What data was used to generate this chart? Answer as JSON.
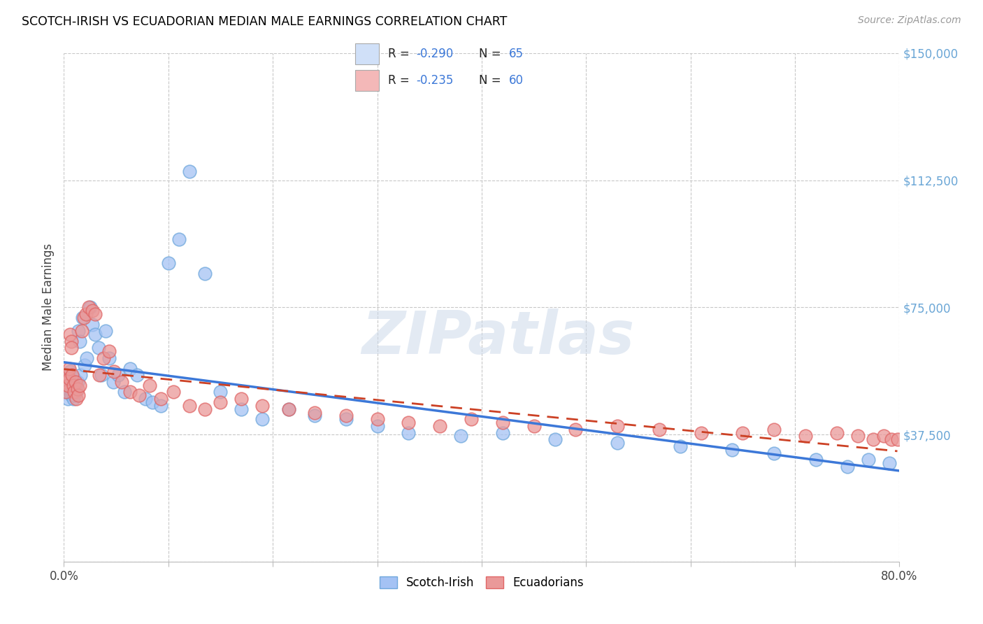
{
  "title": "SCOTCH-IRISH VS ECUADORIAN MEDIAN MALE EARNINGS CORRELATION CHART",
  "source": "Source: ZipAtlas.com",
  "ylabel": "Median Male Earnings",
  "xlim": [
    0.0,
    0.8
  ],
  "ylim": [
    0,
    150000
  ],
  "yticks": [
    0,
    37500,
    75000,
    112500,
    150000
  ],
  "ytick_labels": [
    "",
    "$37,500",
    "$75,000",
    "$112,500",
    "$150,000"
  ],
  "watermark": "ZIPatlas",
  "bg_color": "#ffffff",
  "grid_color": "#c8c8c8",
  "scotch_irish_color": "#a4c2f4",
  "ecuadorian_color": "#ea9999",
  "scotch_irish_dot_edge": "#6fa8dc",
  "ecuadorian_dot_edge": "#e06666",
  "scotch_irish_line_color": "#3c78d8",
  "ecuadorian_line_color": "#cc4125",
  "title_color": "#000000",
  "source_color": "#999999",
  "ytick_color": "#6aa6d6",
  "legend_box_color": "#d0e0f8",
  "legend_pink_color": "#f4b8b8",
  "legend_text_color": "#000000",
  "legend_val_color": "#3c78d8",
  "scotch_irish_x": [
    0.001,
    0.002,
    0.003,
    0.003,
    0.004,
    0.004,
    0.005,
    0.005,
    0.006,
    0.006,
    0.007,
    0.007,
    0.008,
    0.008,
    0.009,
    0.009,
    0.01,
    0.01,
    0.011,
    0.012,
    0.013,
    0.014,
    0.015,
    0.016,
    0.018,
    0.02,
    0.022,
    0.025,
    0.027,
    0.03,
    0.033,
    0.036,
    0.04,
    0.043,
    0.047,
    0.052,
    0.058,
    0.063,
    0.07,
    0.078,
    0.085,
    0.093,
    0.1,
    0.11,
    0.12,
    0.135,
    0.15,
    0.17,
    0.19,
    0.215,
    0.24,
    0.27,
    0.3,
    0.33,
    0.38,
    0.42,
    0.47,
    0.53,
    0.59,
    0.64,
    0.68,
    0.72,
    0.75,
    0.77,
    0.79
  ],
  "scotch_irish_y": [
    52000,
    54000,
    50000,
    55000,
    52000,
    48000,
    51000,
    53000,
    50000,
    56000,
    49000,
    53000,
    51000,
    50000,
    52000,
    48000,
    54000,
    49000,
    51000,
    50000,
    53000,
    68000,
    65000,
    55000,
    72000,
    58000,
    60000,
    75000,
    70000,
    67000,
    63000,
    55000,
    68000,
    60000,
    53000,
    55000,
    50000,
    57000,
    55000,
    48000,
    47000,
    46000,
    88000,
    95000,
    115000,
    85000,
    50000,
    45000,
    42000,
    45000,
    43000,
    42000,
    40000,
    38000,
    37000,
    38000,
    36000,
    35000,
    34000,
    33000,
    32000,
    30000,
    28000,
    30000,
    29000
  ],
  "ecuadorian_x": [
    0.001,
    0.002,
    0.003,
    0.004,
    0.005,
    0.005,
    0.006,
    0.007,
    0.007,
    0.008,
    0.009,
    0.01,
    0.011,
    0.012,
    0.013,
    0.014,
    0.015,
    0.017,
    0.019,
    0.021,
    0.024,
    0.027,
    0.03,
    0.034,
    0.038,
    0.043,
    0.048,
    0.055,
    0.063,
    0.072,
    0.082,
    0.093,
    0.105,
    0.12,
    0.135,
    0.15,
    0.17,
    0.19,
    0.215,
    0.24,
    0.27,
    0.3,
    0.33,
    0.36,
    0.39,
    0.42,
    0.45,
    0.49,
    0.53,
    0.57,
    0.61,
    0.65,
    0.68,
    0.71,
    0.74,
    0.76,
    0.775,
    0.785,
    0.792,
    0.798
  ],
  "ecuadorian_y": [
    53000,
    50000,
    55000,
    52000,
    54000,
    57000,
    67000,
    65000,
    63000,
    55000,
    52000,
    50000,
    53000,
    48000,
    51000,
    49000,
    52000,
    68000,
    72000,
    73000,
    75000,
    74000,
    73000,
    55000,
    60000,
    62000,
    56000,
    53000,
    50000,
    49000,
    52000,
    48000,
    50000,
    46000,
    45000,
    47000,
    48000,
    46000,
    45000,
    44000,
    43000,
    42000,
    41000,
    40000,
    42000,
    41000,
    40000,
    39000,
    40000,
    39000,
    38000,
    38000,
    39000,
    37000,
    38000,
    37000,
    36000,
    37000,
    36000,
    36000
  ],
  "si_trend_x": [
    0.001,
    0.79
  ],
  "si_trend_y": [
    55000,
    29000
  ],
  "ec_trend_x": [
    0.001,
    0.5
  ],
  "ec_trend_y": [
    56000,
    43000
  ]
}
